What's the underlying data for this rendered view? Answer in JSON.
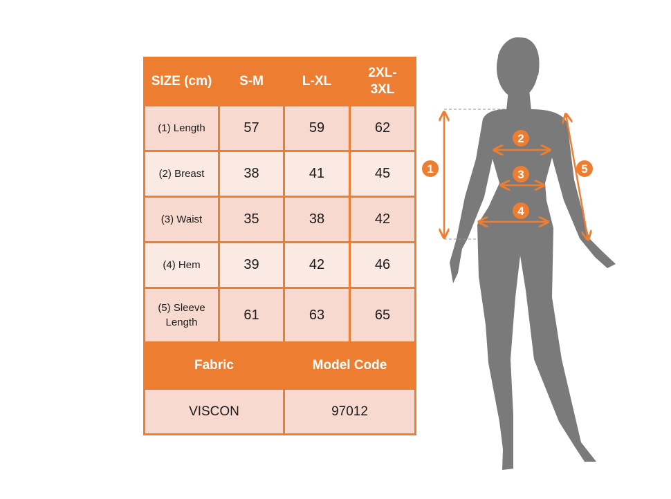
{
  "colors": {
    "accent": "#ED7D31",
    "row_dark": "#F8D9CF",
    "row_light": "#FBEAE4",
    "silhouette": "#7a7a7a"
  },
  "table": {
    "headers": [
      "SIZE (cm)",
      "S-M",
      "L-XL",
      "2XL-3XL"
    ],
    "rows": [
      {
        "label": "(1) Length",
        "values": [
          "57",
          "59",
          "62"
        ]
      },
      {
        "label": "(2) Breast",
        "values": [
          "38",
          "41",
          "45"
        ]
      },
      {
        "label": "(3) Waist",
        "values": [
          "35",
          "38",
          "42"
        ]
      },
      {
        "label": "(4) Hem",
        "values": [
          "39",
          "42",
          "46"
        ]
      },
      {
        "label": "(5) Sleeve Length",
        "values": [
          "61",
          "63",
          "65"
        ]
      }
    ],
    "footer_headers": [
      "Fabric",
      "Model Code"
    ],
    "footer_values": [
      "VISCON",
      "97012"
    ]
  },
  "figure": {
    "markers": [
      "1",
      "2",
      "3",
      "4",
      "5"
    ]
  }
}
